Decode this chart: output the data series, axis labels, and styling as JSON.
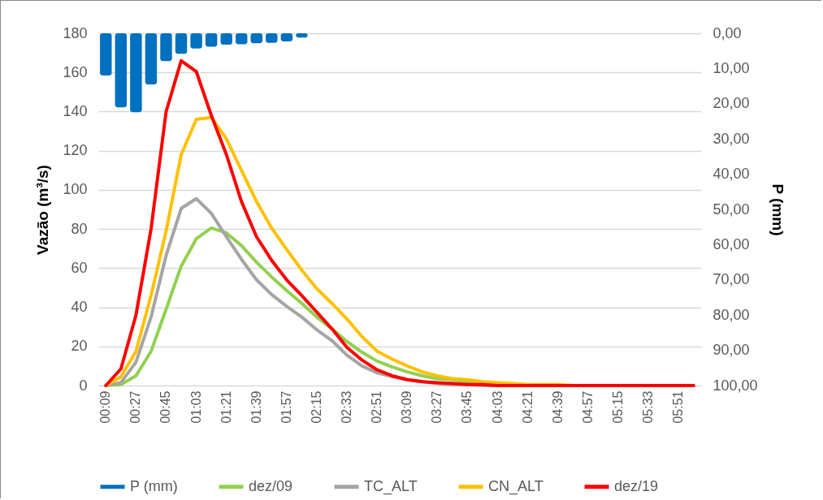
{
  "chart_data": {
    "type": "line",
    "categories": [
      "00:09",
      null,
      "00:27",
      null,
      "00:45",
      null,
      "01:03",
      null,
      "01:21",
      null,
      "01:39",
      null,
      "01:57",
      null,
      "02:15",
      null,
      "02:33",
      null,
      "02:51",
      null,
      "03:09",
      null,
      "03:27",
      null,
      "03:45",
      null,
      "04:03",
      null,
      "04:21",
      null,
      "04:39",
      null,
      "04:57",
      null,
      "05:15",
      null,
      "05:33",
      null,
      "05:51",
      null
    ],
    "series": [
      {
        "name": "P (mm)",
        "type": "bar",
        "axis": "y2",
        "color": "#0070c0",
        "values": [
          12,
          21,
          22.4,
          14.5,
          7.9,
          5.8,
          4.3,
          3.8,
          3.2,
          3.1,
          2.8,
          2.7,
          2.3,
          1.2,
          0,
          0,
          0,
          0,
          0,
          0,
          0,
          0,
          0,
          0,
          0,
          0,
          0,
          0,
          0,
          0,
          0,
          0,
          0,
          0,
          0,
          0,
          0,
          0,
          0,
          0
        ]
      },
      {
        "name": "dez/09",
        "color": "#92d050",
        "values": [
          0,
          0.5,
          5,
          17.5,
          39,
          61,
          75,
          80.5,
          78,
          71.5,
          63,
          55.5,
          48.5,
          42,
          35,
          29,
          22.5,
          17,
          12.5,
          9.5,
          7,
          5,
          3.5,
          3,
          2,
          1.5,
          null,
          null,
          null,
          null,
          null,
          null,
          null,
          null,
          null,
          null,
          null,
          null,
          null,
          null
        ]
      },
      {
        "name": "TC_ALT",
        "color": "#a5a5a5",
        "values": [
          0,
          1.5,
          12,
          35,
          66.5,
          90.5,
          95.5,
          88,
          76,
          64.5,
          54,
          46.5,
          40.5,
          35,
          28.5,
          23,
          15.5,
          10,
          6.5,
          4.5,
          3,
          2,
          1,
          0.5,
          0.5,
          0,
          0,
          0,
          0,
          0,
          0,
          0,
          0,
          0,
          0,
          0,
          0,
          0,
          0,
          0
        ]
      },
      {
        "name": "CN_ALT",
        "color": "#ffc000",
        "values": [
          0,
          4.5,
          17.5,
          46,
          79,
          118,
          136,
          137,
          126,
          110,
          94,
          80.5,
          69.5,
          59,
          49.5,
          42,
          34,
          25,
          17.5,
          13.5,
          10,
          7,
          5,
          3.5,
          3,
          2,
          1.5,
          1,
          0.5,
          0.5,
          0.5,
          0,
          0,
          null,
          null,
          null,
          null,
          null,
          null,
          null
        ]
      },
      {
        "name": "dez/19",
        "color": "#ff0000",
        "values": [
          0,
          8.5,
          36,
          80,
          140,
          166,
          160.5,
          138,
          118,
          94,
          76,
          64,
          54,
          46,
          37.5,
          29,
          19.5,
          13,
          8,
          5,
          3,
          2,
          1.5,
          1,
          0.5,
          0.5,
          0,
          0,
          0,
          0,
          0,
          0,
          0,
          0,
          0,
          0,
          0,
          0,
          0,
          0
        ]
      }
    ],
    "ylabel": "Vazão (m³/s)",
    "y2label": "P (mm)",
    "ylim": [
      0,
      180
    ],
    "yticks": [
      0,
      20,
      40,
      60,
      80,
      100,
      120,
      140,
      160,
      180
    ],
    "y2lim": [
      100,
      0
    ],
    "y2ticks": [
      {
        "value": 0,
        "label": "0,00"
      },
      {
        "value": 10,
        "label": "10,00"
      },
      {
        "value": 20,
        "label": "20,00"
      },
      {
        "value": 30,
        "label": "30,00"
      },
      {
        "value": 40,
        "label": "40,00"
      },
      {
        "value": 50,
        "label": "50,00"
      },
      {
        "value": 60,
        "label": "60,00"
      },
      {
        "value": 70,
        "label": "70,00"
      },
      {
        "value": 80,
        "label": "80,00"
      },
      {
        "value": 90,
        "label": "90,00"
      },
      {
        "value": 100,
        "label": "100,00"
      }
    ],
    "grid": "y",
    "legend": "bottom",
    "line_style": "solid",
    "marker": "none"
  }
}
